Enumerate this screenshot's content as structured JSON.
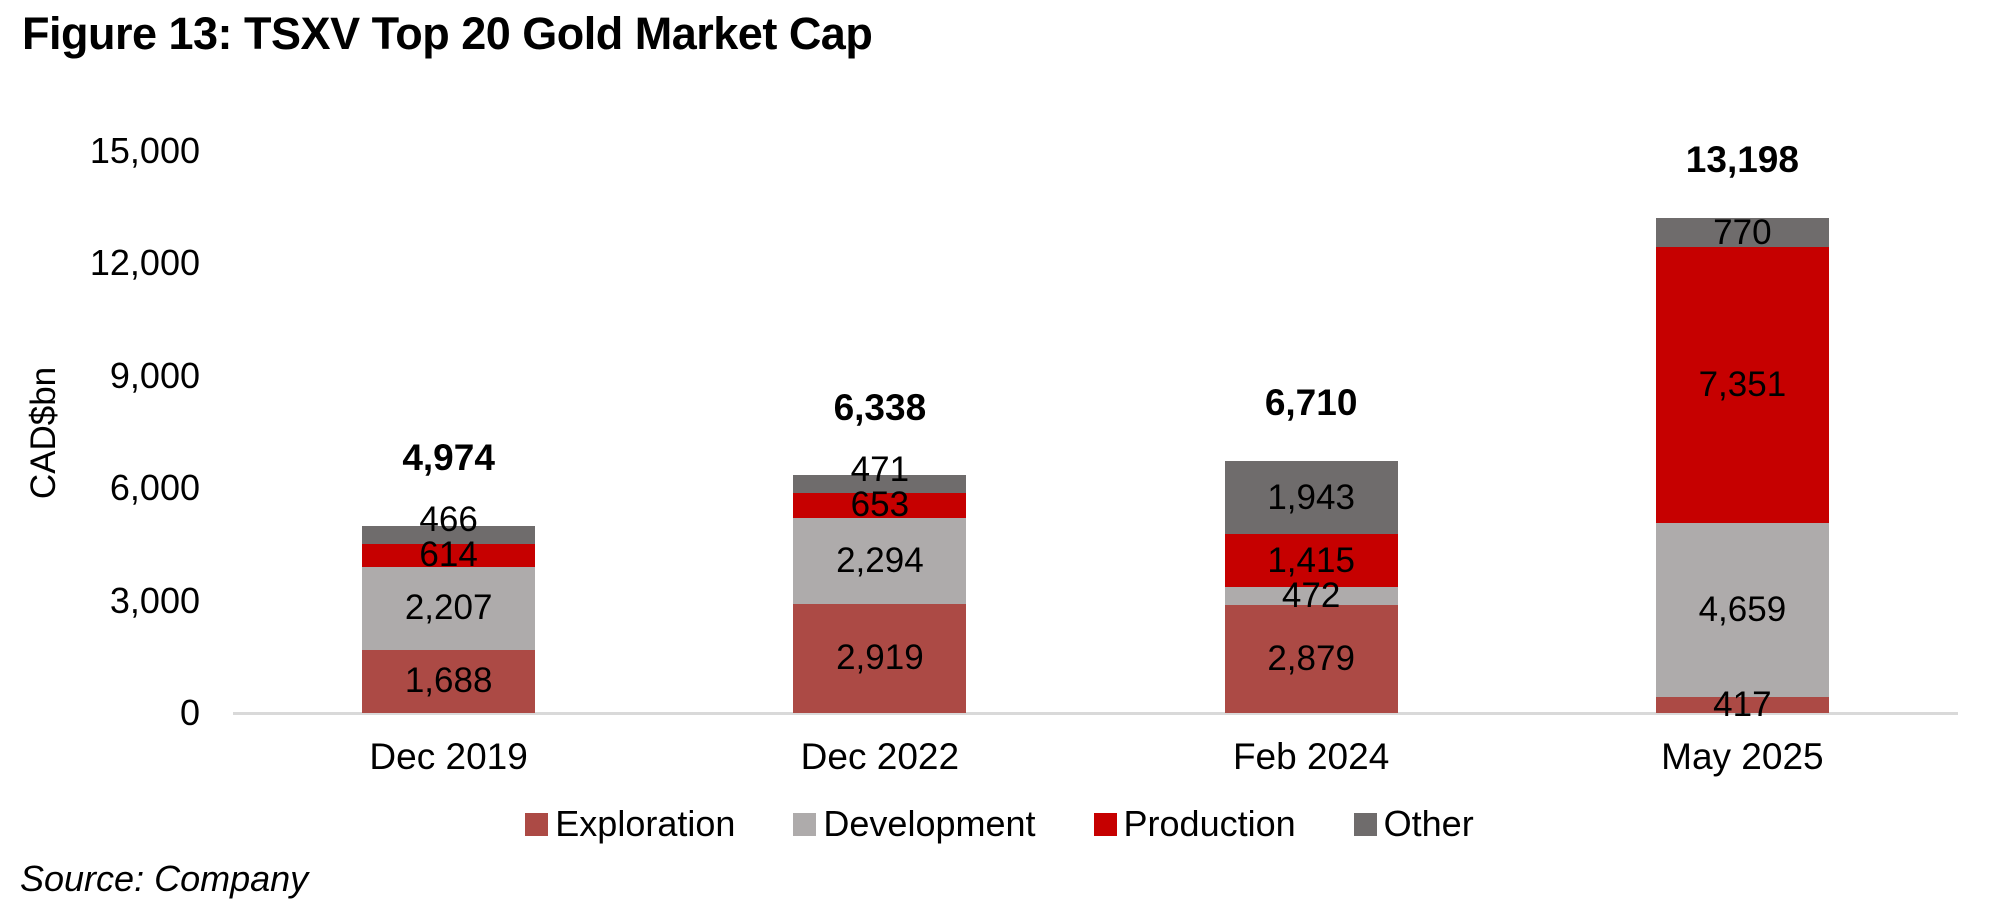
{
  "title": "Figure 13: TSXV Top 20 Gold Market Cap",
  "source_note": "Source: Company",
  "colors": {
    "axis_line": "#D9D9D9",
    "text": "#000000",
    "exploration": "#AC4A45",
    "development": "#AEABAB",
    "production": "#C60000",
    "other": "#6F6C6C"
  },
  "chart_data": {
    "type": "bar",
    "stacked": true,
    "title": "Figure 13: TSXV Top 20 Gold Market Cap",
    "xlabel": "",
    "ylabel": "CAD$bn",
    "ylim": [
      0,
      15000
    ],
    "ytick_step": 3000,
    "ytick_labels": [
      "0",
      "3,000",
      "6,000",
      "9,000",
      "12,000",
      "15,000"
    ],
    "grid": false,
    "legend_position": "bottom",
    "categories": [
      "Dec 2019",
      "Dec 2022",
      "Feb 2024",
      "May 2025"
    ],
    "series": [
      {
        "name": "Exploration",
        "color": "#AC4A45",
        "values": [
          1688,
          2919,
          2879,
          417
        ]
      },
      {
        "name": "Development",
        "color": "#AEABAB",
        "values": [
          2207,
          2294,
          472,
          4659
        ]
      },
      {
        "name": "Production",
        "color": "#C60000",
        "values": [
          614,
          653,
          1415,
          7351
        ]
      },
      {
        "name": "Other",
        "color": "#6F6C6C",
        "values": [
          466,
          471,
          1943,
          770
        ]
      }
    ],
    "totals": [
      4974,
      6338,
      6710,
      13198
    ],
    "total_labels": [
      "4,974",
      "6,338",
      "6,710",
      "13,198"
    ]
  }
}
